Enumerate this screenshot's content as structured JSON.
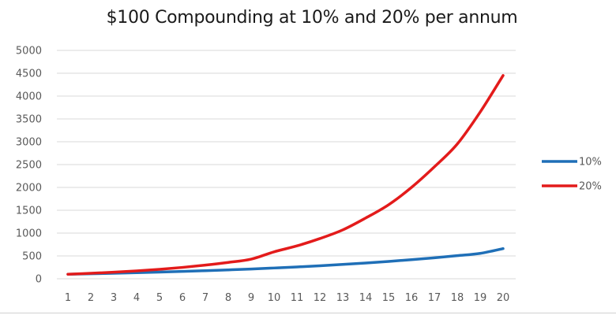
{
  "chart_data": {
    "type": "line",
    "title": "$100 Compounding at 10% and 20% per annum",
    "xlabel": "",
    "ylabel": "",
    "x": [
      1,
      2,
      3,
      4,
      5,
      6,
      7,
      8,
      9,
      10,
      11,
      12,
      13,
      14,
      15,
      16,
      17,
      18,
      19,
      20
    ],
    "series": [
      {
        "name": "10%",
        "color": "#1f6fb7",
        "values": [
          100,
          110,
          121,
          133,
          146,
          161,
          177,
          195,
          214,
          236,
          259,
          285,
          314,
          345,
          380,
          418,
          460,
          506,
          556,
          660
        ]
      },
      {
        "name": "20%",
        "color": "#e31b1b",
        "values": [
          100,
          120,
          144,
          173,
          207,
          249,
          299,
          358,
          430,
          590,
          720,
          880,
          1070,
          1330,
          1620,
          2000,
          2450,
          2950,
          3650,
          4450
        ]
      }
    ],
    "ylim": [
      0,
      5000
    ],
    "yticks": [
      0,
      500,
      1000,
      1500,
      2000,
      2500,
      3000,
      3500,
      4000,
      4500,
      5000
    ],
    "grid": true,
    "legend_position": "right"
  }
}
